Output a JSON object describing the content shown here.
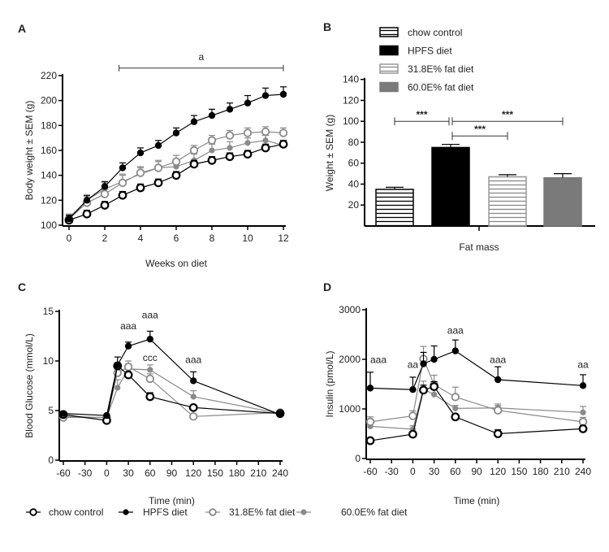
{
  "legend": [
    {
      "name": "chow control",
      "color": "#000000",
      "fill": "open"
    },
    {
      "name": "HPFS diet",
      "color": "#000000",
      "fill": "filled"
    },
    {
      "name": "31.8E% fat diet",
      "color": "#8a8a8a",
      "fill": "open"
    },
    {
      "name": "60.0E% fat diet",
      "color": "#8a8a8a",
      "fill": "filled"
    }
  ],
  "chart_data": [
    {
      "panel": "A",
      "type": "line",
      "xlabel": "Weeks on diet",
      "ylabel": "Body weight ± SEM (g)",
      "xlim": [
        0,
        12
      ],
      "ylim": [
        100,
        220
      ],
      "xticks": [
        0,
        2,
        4,
        6,
        8,
        10,
        12
      ],
      "yticks": [
        100,
        120,
        140,
        160,
        180,
        200,
        220
      ],
      "x": [
        0,
        1,
        2,
        3,
        4,
        5,
        6,
        7,
        8,
        9,
        10,
        11,
        12
      ],
      "series": [
        {
          "name": "chow control",
          "values": [
            104,
            109,
            116,
            124,
            130,
            134,
            140,
            149,
            152,
            155,
            157,
            162,
            165
          ],
          "sem": [
            2,
            3,
            3,
            3,
            3,
            3,
            3,
            3,
            3,
            3,
            3,
            3,
            3
          ]
        },
        {
          "name": "HPFS diet",
          "values": [
            105,
            120,
            131,
            146,
            158,
            164,
            174,
            183,
            188,
            193,
            198,
            204,
            205
          ],
          "sem": [
            3,
            4,
            4,
            4,
            4,
            4,
            4,
            5,
            5,
            5,
            6,
            6,
            6
          ]
        },
        {
          "name": "31.8E% fat diet",
          "values": [
            105,
            118,
            125,
            134,
            142,
            146,
            151,
            160,
            168,
            172,
            174,
            175,
            174
          ],
          "sem": [
            3,
            5,
            4,
            6,
            5,
            6,
            5,
            4,
            4,
            4,
            4,
            4,
            4
          ]
        },
        {
          "name": "60.0E% fat diet",
          "values": [
            106,
            120,
            129,
            135,
            141,
            146,
            147,
            152,
            160,
            162,
            166,
            168,
            164
          ],
          "sem": [
            3,
            4,
            5,
            6,
            5,
            5,
            4,
            5,
            5,
            5,
            4,
            4,
            4
          ]
        }
      ],
      "annotations": [
        {
          "text": "a",
          "x_from": 2.8,
          "x_to": 12,
          "y": 226
        }
      ]
    },
    {
      "panel": "B",
      "type": "bar",
      "xlabel": "Fat mass",
      "ylabel": "Weight ± SEM (g)",
      "ylim": [
        0,
        140
      ],
      "yticks": [
        20,
        40,
        60,
        80,
        100,
        120,
        140
      ],
      "categories": [
        "chow control",
        "HPFS diet",
        "31.8E% fat diet",
        "60.0E% fat diet"
      ],
      "values": [
        35,
        75,
        47,
        46
      ],
      "sem": [
        2,
        3,
        2,
        4
      ],
      "annotations": [
        {
          "text": "***",
          "from": 0,
          "to": 1,
          "y": 100
        },
        {
          "text": "***",
          "from": 1,
          "to": 3,
          "y": 100
        },
        {
          "text": "***",
          "from": 1,
          "to": 2,
          "y": 86
        }
      ]
    },
    {
      "panel": "C",
      "type": "line",
      "xlabel": "Time (min)",
      "ylabel": "Blood Glucose (mmol/L)",
      "xlim": [
        -60,
        240
      ],
      "ylim": [
        0,
        15
      ],
      "xticks": [
        -60,
        -30,
        0,
        30,
        60,
        90,
        120,
        150,
        180,
        210,
        240
      ],
      "yticks": [
        0,
        5,
        10,
        15
      ],
      "x": [
        -60,
        0,
        15,
        30,
        60,
        120,
        240
      ],
      "series": [
        {
          "name": "chow control",
          "values": [
            4.6,
            4.0,
            9.5,
            8.6,
            6.4,
            5.3,
            4.7
          ],
          "sem": [
            0.2,
            0.1,
            0.3,
            0.2,
            0.4,
            0.2,
            0.2
          ]
        },
        {
          "name": "HPFS diet",
          "values": [
            4.7,
            4.5,
            9.6,
            11.5,
            12.2,
            8.0,
            4.6
          ],
          "sem": [
            0.2,
            0.1,
            0.8,
            0.4,
            0.8,
            0.9,
            0.2
          ]
        },
        {
          "name": "31.8E% fat diet",
          "values": [
            4.3,
            4.3,
            8.8,
            9.4,
            8.2,
            4.4,
            4.8
          ],
          "sem": [
            0.2,
            0.1,
            0.6,
            0.6,
            0.5,
            0.1,
            0.2
          ]
        },
        {
          "name": "60.0E% fat diet",
          "values": [
            4.4,
            4.3,
            7.3,
            9.2,
            9.1,
            6.4,
            4.7
          ],
          "sem": [
            0.2,
            0.1,
            0.8,
            0.5,
            0.5,
            0.6,
            0.2
          ]
        }
      ],
      "annotations": [
        {
          "text": "aaa",
          "x": 30,
          "y": 13.2
        },
        {
          "text": "aaa",
          "x": 60,
          "y": 14.3
        },
        {
          "text": "ccc",
          "x": 60,
          "y": 10.0
        },
        {
          "text": "aaa",
          "x": 120,
          "y": 9.8
        }
      ]
    },
    {
      "panel": "D",
      "type": "line",
      "xlabel": "Time (min)",
      "ylabel": "Insulin (pmol/L)",
      "xlim": [
        -60,
        240
      ],
      "ylim": [
        0,
        3000
      ],
      "xticks": [
        -60,
        -30,
        0,
        30,
        60,
        90,
        120,
        150,
        180,
        210,
        240
      ],
      "yticks": [
        0,
        1000,
        2000,
        3000
      ],
      "x": [
        -60,
        0,
        15,
        30,
        60,
        120,
        240
      ],
      "series": [
        {
          "name": "chow control",
          "values": [
            360,
            490,
            1380,
            1450,
            840,
            500,
            600
          ],
          "sem": [
            40,
            40,
            100,
            100,
            50,
            80,
            60
          ]
        },
        {
          "name": "HPFS diet",
          "values": [
            1420,
            1390,
            1910,
            2000,
            2170,
            1590,
            1470
          ],
          "sem": [
            320,
            250,
            230,
            270,
            220,
            260,
            220
          ]
        },
        {
          "name": "31.8E% fat diet",
          "values": [
            740,
            860,
            2010,
            1490,
            1240,
            970,
            740
          ],
          "sem": [
            100,
            100,
            250,
            190,
            200,
            100,
            90
          ]
        },
        {
          "name": "60.0E% fat diet",
          "values": [
            650,
            590,
            1400,
            1290,
            1010,
            1020,
            930
          ],
          "sem": [
            60,
            70,
            160,
            110,
            60,
            80,
            120
          ]
        }
      ],
      "annotations": [
        {
          "text": "aaa",
          "x": -60,
          "y": 1930
        },
        {
          "text": "aa",
          "x": 0,
          "y": 1830
        },
        {
          "text": "aaa",
          "x": 60,
          "y": 2520
        },
        {
          "text": "aaa",
          "x": 120,
          "y": 1930
        },
        {
          "text": "aa",
          "x": 240,
          "y": 1830
        }
      ]
    }
  ]
}
